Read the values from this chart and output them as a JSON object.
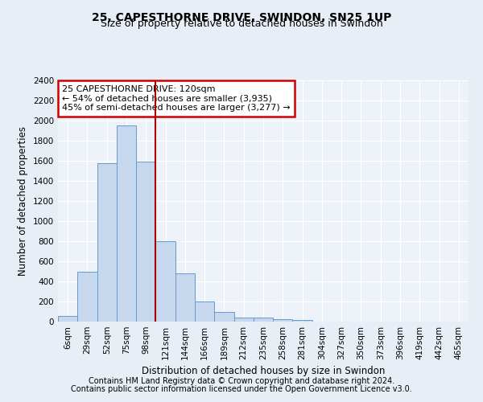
{
  "title": "25, CAPESTHORNE DRIVE, SWINDON, SN25 1UP",
  "subtitle": "Size of property relative to detached houses in Swindon",
  "xlabel": "Distribution of detached houses by size in Swindon",
  "ylabel": "Number of detached properties",
  "categories": [
    "6sqm",
    "29sqm",
    "52sqm",
    "75sqm",
    "98sqm",
    "121sqm",
    "144sqm",
    "166sqm",
    "189sqm",
    "212sqm",
    "235sqm",
    "258sqm",
    "281sqm",
    "304sqm",
    "327sqm",
    "350sqm",
    "373sqm",
    "396sqm",
    "419sqm",
    "442sqm",
    "465sqm"
  ],
  "values": [
    60,
    500,
    1580,
    1950,
    1590,
    800,
    480,
    200,
    95,
    40,
    40,
    25,
    20,
    0,
    0,
    0,
    0,
    0,
    0,
    0,
    0
  ],
  "bar_color": "#c5d8ee",
  "bar_edge_color": "#6699cc",
  "vline_index": 5,
  "vline_color": "#aa0000",
  "ylim": [
    0,
    2400
  ],
  "yticks": [
    0,
    200,
    400,
    600,
    800,
    1000,
    1200,
    1400,
    1600,
    1800,
    2000,
    2200,
    2400
  ],
  "annotation_text": "25 CAPESTHORNE DRIVE: 120sqm\n← 54% of detached houses are smaller (3,935)\n45% of semi-detached houses are larger (3,277) →",
  "annotation_box_color": "#ffffff",
  "annotation_box_edge": "#cc0000",
  "footer_line1": "Contains HM Land Registry data © Crown copyright and database right 2024.",
  "footer_line2": "Contains public sector information licensed under the Open Government Licence v3.0.",
  "bg_color": "#e8eef5",
  "plot_bg_color": "#edf2f8",
  "grid_color": "#ffffff",
  "title_fontsize": 10,
  "subtitle_fontsize": 9,
  "axis_label_fontsize": 8.5,
  "tick_fontsize": 7.5,
  "footer_fontsize": 7,
  "annotation_fontsize": 8
}
